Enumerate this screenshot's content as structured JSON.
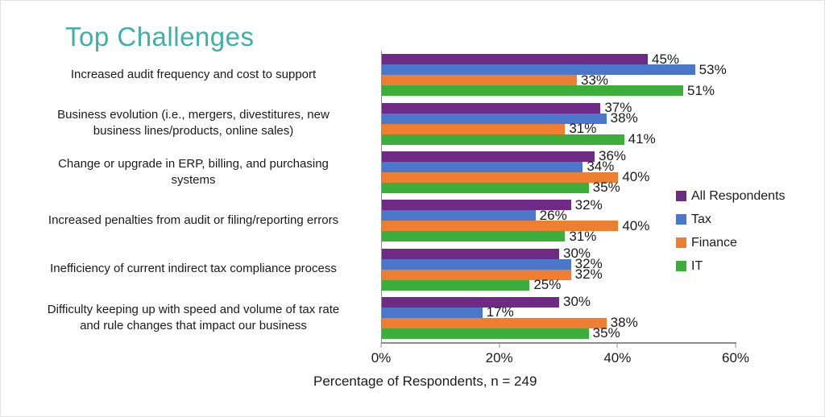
{
  "chart_data": {
    "type": "bar",
    "orientation": "horizontal",
    "title": "Top Challenges",
    "title_color": "#3FAFA8",
    "categories": [
      "Increased audit frequency and cost to support",
      "Business evolution (i.e., mergers, divestitures, new business lines/products, online sales)",
      "Change or upgrade in ERP, billing, and purchasing systems",
      "Increased penalties from audit or filing/reporting errors",
      "Inefficiency of current indirect tax compliance process",
      "Difficulty keeping up with speed and volume of tax rate and rule changes that impact our business"
    ],
    "category_lines": [
      [
        "Increased audit frequency and cost to support"
      ],
      [
        "Business evolution (i.e., mergers, divestitures, new",
        "business lines/products, online sales)"
      ],
      [
        "Change or upgrade in ERP, billing, and purchasing",
        "systems"
      ],
      [
        "Increased penalties from audit or filing/reporting errors"
      ],
      [
        "Inefficiency of current indirect tax compliance process"
      ],
      [
        "Difficulty keeping up with speed and volume of tax rate",
        "and rule changes that impact our business"
      ]
    ],
    "series": [
      {
        "name": "All Respondents",
        "color": "#6E2A85",
        "values": [
          45,
          37,
          36,
          32,
          30,
          30
        ]
      },
      {
        "name": "Tax",
        "color": "#4A77C9",
        "values": [
          53,
          38,
          34,
          26,
          32,
          17
        ]
      },
      {
        "name": "Finance",
        "color": "#EE7E31",
        "values": [
          33,
          31,
          40,
          40,
          32,
          38
        ]
      },
      {
        "name": "IT",
        "color": "#3BAE3C",
        "values": [
          51,
          41,
          35,
          31,
          25,
          35
        ]
      }
    ],
    "xlabel": "Percentage of Respondents, n = 249",
    "xlim": [
      0,
      60
    ],
    "x_ticks": [
      {
        "value": 0,
        "label": "0%"
      },
      {
        "value": 20,
        "label": "20%"
      },
      {
        "value": 40,
        "label": "40%"
      },
      {
        "value": 60,
        "label": "60%"
      }
    ],
    "value_suffix": "%",
    "grid": false,
    "legend_position": "right"
  }
}
